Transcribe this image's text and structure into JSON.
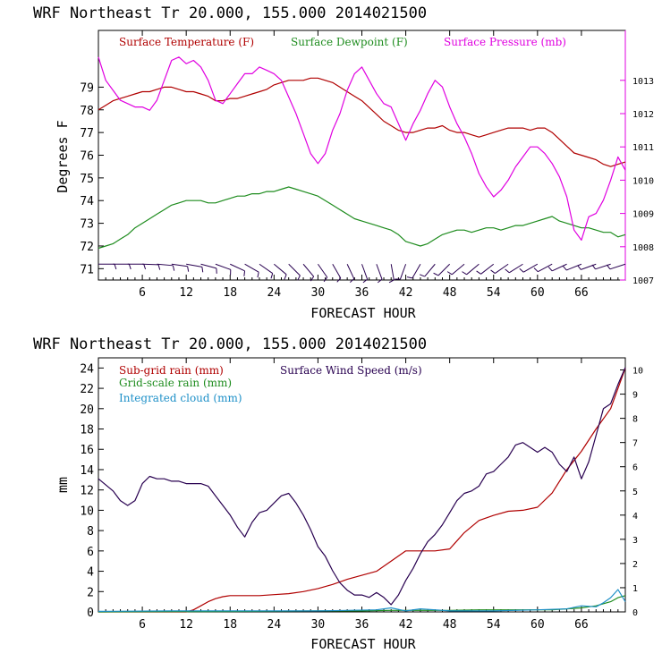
{
  "chart_data": [
    {
      "type": "line",
      "title": "WRF  Northeast Tr  20.000, 155.000  2014021500",
      "xlabel": "FORECAST HOUR",
      "ylabel": "Degrees F",
      "xlim": [
        0,
        72
      ],
      "ylim": [
        70.5,
        81.5
      ],
      "y2lim": [
        1007,
        1014.5
      ],
      "x_ticks": [
        "6",
        "12",
        "18",
        "24",
        "30",
        "36",
        "42",
        "48",
        "54",
        "60",
        "66"
      ],
      "y_ticks": [
        "71",
        "72",
        "73",
        "74",
        "75",
        "76",
        "77",
        "78",
        "79"
      ],
      "y2_ticks": [
        "1007",
        "1008",
        "1009",
        "1010",
        "1011",
        "1012",
        "1013"
      ],
      "legend_position": "top-left",
      "colors": {
        "temperature": "#b00000",
        "dewpoint": "#1e8c1e",
        "pressure": "#e000e0",
        "wind_barbs": "#280050",
        "axis_right": "#e000e0"
      },
      "series": [
        {
          "name": "Surface Temperature (F)",
          "axis": "left",
          "color": "#b00000",
          "x": [
            0,
            1,
            2,
            3,
            4,
            5,
            6,
            7,
            8,
            9,
            10,
            11,
            12,
            13,
            14,
            15,
            16,
            17,
            18,
            19,
            20,
            21,
            22,
            23,
            24,
            25,
            26,
            27,
            28,
            29,
            30,
            31,
            32,
            33,
            34,
            35,
            36,
            37,
            38,
            39,
            40,
            41,
            42,
            43,
            44,
            45,
            46,
            47,
            48,
            49,
            50,
            51,
            52,
            53,
            54,
            55,
            56,
            57,
            58,
            59,
            60,
            61,
            62,
            63,
            64,
            65,
            66,
            67,
            68,
            69,
            70,
            71,
            72
          ],
          "values": [
            78.0,
            78.2,
            78.4,
            78.5,
            78.6,
            78.7,
            78.8,
            78.8,
            78.9,
            79.0,
            79.0,
            78.9,
            78.8,
            78.8,
            78.7,
            78.6,
            78.4,
            78.4,
            78.5,
            78.5,
            78.6,
            78.7,
            78.8,
            78.9,
            79.1,
            79.2,
            79.3,
            79.3,
            79.3,
            79.4,
            79.4,
            79.3,
            79.2,
            79.0,
            78.8,
            78.6,
            78.4,
            78.1,
            77.8,
            77.5,
            77.3,
            77.1,
            77.0,
            77.0,
            77.1,
            77.2,
            77.2,
            77.3,
            77.1,
            77.0,
            77.0,
            76.9,
            76.8,
            76.9,
            77.0,
            77.1,
            77.2,
            77.2,
            77.2,
            77.1,
            77.2,
            77.2,
            77.0,
            76.7,
            76.4,
            76.1,
            76.0,
            75.9,
            75.8,
            75.6,
            75.5,
            75.6,
            75.7
          ]
        },
        {
          "name": "Surface Dewpoint (F)",
          "axis": "left",
          "color": "#1e8c1e",
          "x": [
            0,
            1,
            2,
            3,
            4,
            5,
            6,
            7,
            8,
            9,
            10,
            11,
            12,
            13,
            14,
            15,
            16,
            17,
            18,
            19,
            20,
            21,
            22,
            23,
            24,
            25,
            26,
            27,
            28,
            29,
            30,
            31,
            32,
            33,
            34,
            35,
            36,
            37,
            38,
            39,
            40,
            41,
            42,
            43,
            44,
            45,
            46,
            47,
            48,
            49,
            50,
            51,
            52,
            53,
            54,
            55,
            56,
            57,
            58,
            59,
            60,
            61,
            62,
            63,
            64,
            65,
            66,
            67,
            68,
            69,
            70,
            71,
            72
          ],
          "values": [
            71.9,
            72.0,
            72.1,
            72.3,
            72.5,
            72.8,
            73.0,
            73.2,
            73.4,
            73.6,
            73.8,
            73.9,
            74.0,
            74.0,
            74.0,
            73.9,
            73.9,
            74.0,
            74.1,
            74.2,
            74.2,
            74.3,
            74.3,
            74.4,
            74.4,
            74.5,
            74.6,
            74.5,
            74.4,
            74.3,
            74.2,
            74.0,
            73.8,
            73.6,
            73.4,
            73.2,
            73.1,
            73.0,
            72.9,
            72.8,
            72.7,
            72.5,
            72.2,
            72.1,
            72.0,
            72.1,
            72.3,
            72.5,
            72.6,
            72.7,
            72.7,
            72.6,
            72.7,
            72.8,
            72.8,
            72.7,
            72.8,
            72.9,
            72.9,
            73.0,
            73.1,
            73.2,
            73.3,
            73.1,
            73.0,
            72.9,
            72.8,
            72.8,
            72.7,
            72.6,
            72.6,
            72.4,
            72.5
          ]
        },
        {
          "name": "Surface Pressure (mb)",
          "axis": "right",
          "color": "#e000e0",
          "x": [
            0,
            1,
            2,
            3,
            4,
            5,
            6,
            7,
            8,
            9,
            10,
            11,
            12,
            13,
            14,
            15,
            16,
            17,
            18,
            19,
            20,
            21,
            22,
            23,
            24,
            25,
            26,
            27,
            28,
            29,
            30,
            31,
            32,
            33,
            34,
            35,
            36,
            37,
            38,
            39,
            40,
            41,
            42,
            43,
            44,
            45,
            46,
            47,
            48,
            49,
            50,
            51,
            52,
            53,
            54,
            55,
            56,
            57,
            58,
            59,
            60,
            61,
            62,
            63,
            64,
            65,
            66,
            67,
            68,
            69,
            70,
            71,
            72
          ],
          "values": [
            1013.7,
            1013.0,
            1012.7,
            1012.4,
            1012.3,
            1012.2,
            1012.2,
            1012.1,
            1012.4,
            1013.0,
            1013.6,
            1013.7,
            1013.5,
            1013.6,
            1013.4,
            1013.0,
            1012.4,
            1012.3,
            1012.6,
            1012.9,
            1013.2,
            1013.2,
            1013.4,
            1013.3,
            1013.2,
            1013.0,
            1012.5,
            1012.0,
            1011.4,
            1010.8,
            1010.5,
            1010.8,
            1011.5,
            1012.0,
            1012.7,
            1013.2,
            1013.4,
            1013.0,
            1012.6,
            1012.3,
            1012.2,
            1011.7,
            1011.2,
            1011.7,
            1012.1,
            1012.6,
            1013.0,
            1012.8,
            1012.2,
            1011.7,
            1011.3,
            1010.8,
            1010.2,
            1009.8,
            1009.5,
            1009.7,
            1010.0,
            1010.4,
            1010.7,
            1011.0,
            1011.0,
            1010.8,
            1010.5,
            1010.1,
            1009.5,
            1008.5,
            1008.2,
            1008.9,
            1009.0,
            1009.4,
            1010.0,
            1010.7,
            1010.3
          ]
        }
      ],
      "wind_barbs": {
        "name": "wind barbs",
        "x": [
          0,
          2,
          4,
          6,
          8,
          10,
          12,
          14,
          16,
          18,
          20,
          22,
          24,
          26,
          28,
          30,
          32,
          34,
          36,
          38,
          40,
          42,
          44,
          46,
          48,
          50,
          52,
          54,
          56,
          58,
          60,
          62,
          64,
          66,
          68,
          70,
          72
        ],
        "direction_deg": [
          90,
          90,
          90,
          92,
          95,
          98,
          100,
          105,
          110,
          115,
          120,
          125,
          130,
          135,
          140,
          145,
          150,
          155,
          160,
          160,
          170,
          200,
          210,
          220,
          225,
          230,
          230,
          232,
          235,
          238,
          240,
          242,
          245,
          248,
          250,
          252,
          252
        ]
      }
    },
    {
      "type": "line",
      "title": "WRF  Northeast Tr  20.000, 155.000  2014021500",
      "xlabel": "FORECAST HOUR",
      "ylabel": "mm",
      "xlim": [
        0,
        72
      ],
      "ylim": [
        0,
        25
      ],
      "y2lim": [
        0,
        10.5
      ],
      "x_ticks": [
        "6",
        "12",
        "18",
        "24",
        "30",
        "36",
        "42",
        "48",
        "54",
        "60",
        "66"
      ],
      "y_ticks": [
        "0",
        "2",
        "4",
        "6",
        "8",
        "10",
        "12",
        "14",
        "16",
        "18",
        "20",
        "22",
        "24"
      ],
      "y2_ticks": [
        "0",
        "1",
        "2",
        "3",
        "4",
        "5",
        "6",
        "7",
        "8",
        "9",
        "10"
      ],
      "legend_position": "top-left",
      "colors": {
        "subgrid": "#b00000",
        "gridscale": "#1e8c1e",
        "cloud": "#1e90c8",
        "wind": "#280050"
      },
      "series": [
        {
          "name": "Sub-grid rain (mm)",
          "axis": "left",
          "color": "#b00000",
          "x": [
            0,
            12,
            13,
            14,
            15,
            16,
            17,
            18,
            20,
            22,
            24,
            26,
            28,
            30,
            32,
            34,
            36,
            38,
            40,
            42,
            44,
            46,
            48,
            50,
            52,
            54,
            56,
            58,
            60,
            62,
            64,
            66,
            68,
            70,
            72
          ],
          "values": [
            0,
            0,
            0.2,
            0.6,
            1.0,
            1.3,
            1.5,
            1.6,
            1.6,
            1.6,
            1.7,
            1.8,
            2.0,
            2.3,
            2.7,
            3.2,
            3.6,
            4.0,
            5.0,
            6.0,
            6.0,
            6.0,
            6.2,
            7.8,
            9.0,
            9.5,
            9.9,
            10.0,
            10.3,
            11.7,
            14.0,
            15.8,
            18.0,
            20.0,
            24.0
          ]
        },
        {
          "name": "Grid-scale rain (mm)",
          "axis": "left",
          "color": "#1e8c1e",
          "x": [
            0,
            20,
            30,
            36,
            40,
            44,
            48,
            52,
            56,
            60,
            62,
            64,
            66,
            68,
            70,
            71,
            72
          ],
          "values": [
            0,
            0.05,
            0.1,
            0.1,
            0.15,
            0.15,
            0.15,
            0.2,
            0.2,
            0.2,
            0.2,
            0.3,
            0.4,
            0.6,
            1.0,
            1.4,
            1.6
          ]
        },
        {
          "name": "Integrated cloud (mm)",
          "axis": "left",
          "color": "#1e90c8",
          "x": [
            0,
            10,
            20,
            30,
            38,
            40,
            42,
            44,
            46,
            48,
            54,
            60,
            64,
            66,
            68,
            69,
            70,
            71,
            72
          ],
          "values": [
            0.05,
            0.1,
            0.1,
            0.1,
            0.2,
            0.4,
            0.1,
            0.3,
            0.2,
            0.1,
            0.1,
            0.2,
            0.3,
            0.6,
            0.5,
            0.9,
            1.4,
            2.2,
            1.0
          ]
        },
        {
          "name": "Surface Wind Speed (m/s)",
          "axis": "right",
          "color": "#280050",
          "x": [
            0,
            2,
            3,
            4,
            5,
            6,
            7,
            8,
            9,
            10,
            11,
            12,
            13,
            14,
            15,
            16,
            17,
            18,
            19,
            20,
            21,
            22,
            23,
            24,
            25,
            26,
            27,
            28,
            29,
            30,
            31,
            32,
            33,
            34,
            35,
            36,
            37,
            38,
            39,
            40,
            41,
            42,
            43,
            44,
            45,
            46,
            47,
            48,
            49,
            50,
            51,
            52,
            53,
            54,
            55,
            56,
            57,
            58,
            59,
            60,
            61,
            62,
            63,
            64,
            65,
            66,
            67,
            68,
            69,
            70,
            71,
            72
          ],
          "values": [
            5.5,
            5.0,
            4.6,
            4.4,
            4.6,
            5.3,
            5.6,
            5.5,
            5.5,
            5.4,
            5.4,
            5.3,
            5.3,
            5.3,
            5.2,
            4.8,
            4.4,
            4.0,
            3.5,
            3.1,
            3.7,
            4.1,
            4.2,
            4.5,
            4.8,
            4.9,
            4.5,
            4.0,
            3.4,
            2.7,
            2.3,
            1.7,
            1.2,
            0.9,
            0.7,
            0.7,
            0.6,
            0.8,
            0.6,
            0.3,
            0.7,
            1.3,
            1.8,
            2.4,
            2.9,
            3.2,
            3.6,
            4.1,
            4.6,
            4.9,
            5.0,
            5.2,
            5.7,
            5.8,
            6.1,
            6.4,
            6.9,
            7.0,
            6.8,
            6.6,
            6.8,
            6.6,
            6.1,
            5.8,
            6.4,
            5.5,
            6.2,
            7.3,
            8.4,
            8.6,
            9.4,
            10.1
          ]
        }
      ]
    }
  ]
}
